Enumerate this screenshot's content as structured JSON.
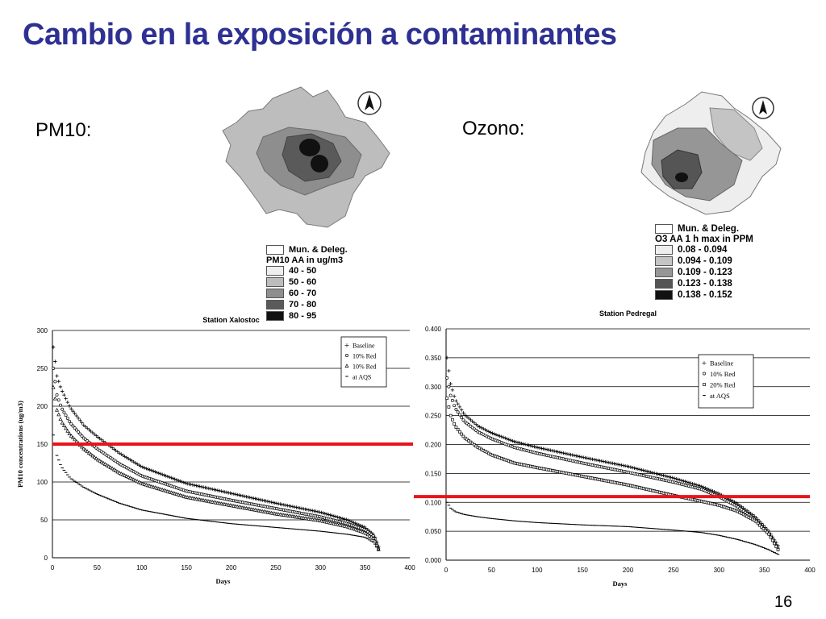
{
  "slide": {
    "title": "Cambio en la exposición a contaminantes",
    "page_number": "16",
    "pm10_label": "PM10:",
    "ozone_label": "Ozono:"
  },
  "pm10_map": {
    "legend_title_1": "Mun. & Deleg.",
    "legend_title_2": "PM10 AA in ug/m3",
    "legend": [
      {
        "label": "40 - 50",
        "color": "#eeeeee"
      },
      {
        "label": "50 - 60",
        "color": "#bdbdbd"
      },
      {
        "label": "60 - 70",
        "color": "#8e8e8e"
      },
      {
        "label": "70 - 80",
        "color": "#5a5a5a"
      },
      {
        "label": "80 - 95",
        "color": "#111111"
      }
    ]
  },
  "ozone_map": {
    "legend_title_1": "Mun. & Deleg.",
    "legend_title_2": "O3 AA 1 h max in PPM",
    "legend": [
      {
        "label": "0.08 - 0.094",
        "color": "#eeeeee"
      },
      {
        "label": "0.094 - 0.109",
        "color": "#c4c4c4"
      },
      {
        "label": "0.109 - 0.123",
        "color": "#969696"
      },
      {
        "label": "0.123 - 0.138",
        "color": "#555555"
      },
      {
        "label": "0.138 - 0.152",
        "color": "#111111"
      }
    ]
  },
  "chart_data": [
    {
      "type": "scatter",
      "title": "Station Xalostoc",
      "xlabel": "Days",
      "ylabel": "PM10 concentrations (ug/m3)",
      "xlim": [
        0,
        400
      ],
      "ylim": [
        0,
        300
      ],
      "xticks": [
        "0",
        "50",
        "100",
        "150",
        "200",
        "250",
        "300",
        "350",
        "400"
      ],
      "yticks": [
        "0",
        "50",
        "100",
        "150",
        "200",
        "250",
        "300"
      ],
      "grid": true,
      "legend_position": "top-right",
      "reference_line": {
        "y": 150,
        "color": "#e8141b"
      },
      "series": [
        {
          "name": "Baseline",
          "marker": "+",
          "points": [
            [
              1,
              278
            ],
            [
              5,
              240
            ],
            [
              10,
              222
            ],
            [
              20,
              198
            ],
            [
              35,
              175
            ],
            [
              50,
              160
            ],
            [
              75,
              138
            ],
            [
              100,
              120
            ],
            [
              150,
              98
            ],
            [
              200,
              85
            ],
            [
              250,
              72
            ],
            [
              300,
              60
            ],
            [
              330,
              50
            ],
            [
              350,
              40
            ],
            [
              360,
              30
            ],
            [
              365,
              15
            ]
          ]
        },
        {
          "name": "10% Red",
          "marker": "o",
          "points": [
            [
              1,
              250
            ],
            [
              5,
              215
            ],
            [
              10,
              198
            ],
            [
              20,
              178
            ],
            [
              35,
              158
            ],
            [
              50,
              144
            ],
            [
              75,
              124
            ],
            [
              100,
              108
            ],
            [
              150,
              88
            ],
            [
              200,
              76
            ],
            [
              250,
              65
            ],
            [
              300,
              54
            ],
            [
              330,
              45
            ],
            [
              350,
              37
            ],
            [
              360,
              28
            ],
            [
              365,
              12
            ]
          ]
        },
        {
          "name": "10% Red",
          "marker": "triangle",
          "points": [
            [
              1,
              225
            ],
            [
              5,
              195
            ],
            [
              10,
              180
            ],
            [
              20,
              162
            ],
            [
              35,
              144
            ],
            [
              50,
              130
            ],
            [
              75,
              112
            ],
            [
              100,
              98
            ],
            [
              150,
              80
            ],
            [
              200,
              69
            ],
            [
              250,
              58
            ],
            [
              300,
              49
            ],
            [
              330,
              41
            ],
            [
              350,
              33
            ],
            [
              360,
              25
            ],
            [
              365,
              11
            ]
          ]
        },
        {
          "name": "at AQS",
          "marker": "-",
          "points": [
            [
              1,
              162
            ],
            [
              5,
              135
            ],
            [
              10,
              120
            ],
            [
              20,
              105
            ],
            [
              35,
              93
            ],
            [
              50,
              84
            ],
            [
              75,
              72
            ],
            [
              100,
              63
            ],
            [
              150,
              52
            ],
            [
              200,
              45
            ],
            [
              250,
              40
            ],
            [
              300,
              35
            ],
            [
              330,
              31
            ],
            [
              350,
              27
            ],
            [
              360,
              20
            ],
            [
              365,
              10
            ]
          ]
        }
      ]
    },
    {
      "type": "scatter",
      "title": "Station Pedregal",
      "xlabel": "Days",
      "ylabel": "",
      "xlim": [
        0,
        400
      ],
      "ylim": [
        0,
        0.4
      ],
      "xticks": [
        "0",
        "50",
        "100",
        "150",
        "200",
        "250",
        "300",
        "350",
        "400"
      ],
      "yticks": [
        "0.000",
        "0.050",
        "0.100",
        "0.150",
        "0.200",
        "0.250",
        "0.300",
        "0.350",
        "0.400"
      ],
      "grid": true,
      "legend_position": "top-right",
      "reference_line": {
        "y": 0.11,
        "color": "#e8141b"
      },
      "series": [
        {
          "name": "Baseline",
          "marker": "+",
          "points": [
            [
              1,
              0.35
            ],
            [
              5,
              0.305
            ],
            [
              10,
              0.278
            ],
            [
              20,
              0.252
            ],
            [
              35,
              0.232
            ],
            [
              50,
              0.22
            ],
            [
              75,
              0.205
            ],
            [
              100,
              0.195
            ],
            [
              150,
              0.178
            ],
            [
              200,
              0.162
            ],
            [
              250,
              0.142
            ],
            [
              280,
              0.128
            ],
            [
              300,
              0.115
            ],
            [
              320,
              0.098
            ],
            [
              340,
              0.075
            ],
            [
              355,
              0.05
            ],
            [
              365,
              0.025
            ]
          ]
        },
        {
          "name": "10% Red",
          "marker": "o",
          "points": [
            [
              1,
              0.315
            ],
            [
              5,
              0.285
            ],
            [
              10,
              0.263
            ],
            [
              20,
              0.24
            ],
            [
              35,
              0.222
            ],
            [
              50,
              0.21
            ],
            [
              75,
              0.195
            ],
            [
              100,
              0.185
            ],
            [
              150,
              0.168
            ],
            [
              200,
              0.152
            ],
            [
              250,
              0.135
            ],
            [
              280,
              0.123
            ],
            [
              300,
              0.11
            ],
            [
              320,
              0.093
            ],
            [
              340,
              0.07
            ],
            [
              355,
              0.045
            ],
            [
              365,
              0.02
            ]
          ]
        },
        {
          "name": "20% Red",
          "marker": "square",
          "points": [
            [
              1,
              0.28
            ],
            [
              5,
              0.25
            ],
            [
              10,
              0.232
            ],
            [
              20,
              0.212
            ],
            [
              35,
              0.195
            ],
            [
              50,
              0.182
            ],
            [
              75,
              0.168
            ],
            [
              100,
              0.16
            ],
            [
              150,
              0.145
            ],
            [
              200,
              0.13
            ],
            [
              250,
              0.112
            ],
            [
              280,
              0.102
            ],
            [
              300,
              0.095
            ],
            [
              320,
              0.085
            ],
            [
              340,
              0.068
            ],
            [
              355,
              0.045
            ],
            [
              365,
              0.018
            ]
          ]
        },
        {
          "name": "at AQS",
          "marker": "-",
          "points": [
            [
              1,
              0.1
            ],
            [
              5,
              0.09
            ],
            [
              10,
              0.084
            ],
            [
              20,
              0.079
            ],
            [
              35,
              0.075
            ],
            [
              50,
              0.072
            ],
            [
              75,
              0.068
            ],
            [
              100,
              0.065
            ],
            [
              150,
              0.061
            ],
            [
              200,
              0.058
            ],
            [
              250,
              0.052
            ],
            [
              280,
              0.048
            ],
            [
              300,
              0.043
            ],
            [
              320,
              0.036
            ],
            [
              340,
              0.027
            ],
            [
              355,
              0.018
            ],
            [
              365,
              0.01
            ]
          ]
        }
      ]
    }
  ]
}
